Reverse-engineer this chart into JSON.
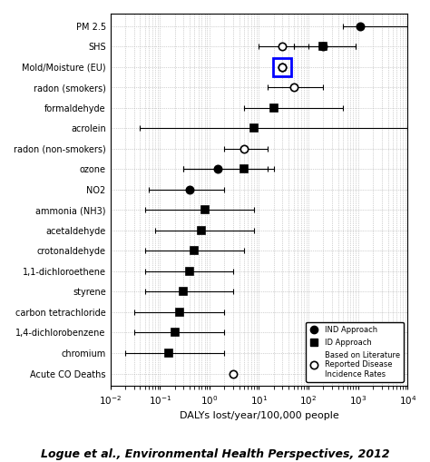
{
  "xlabel": "DALYs lost/year/100,000 people",
  "citation": "Logue et al., Environmental Health Perspectives, 2012",
  "categories": [
    "PM 2.5",
    "SHS",
    "Mold/Moisture (EU)",
    "radon (smokers)",
    "formaldehyde",
    "acrolein",
    "radon (non-smokers)",
    "ozone",
    "NO2",
    "ammonia (NH3)",
    "acetaldehyde",
    "crotonaldehyde",
    "1,1-dichloroethene",
    "styrene",
    "carbon tetrachloride",
    "1,4-dichlorobenzene",
    "chromium",
    "Acute CO Deaths"
  ],
  "ind_data": {
    "PM 2.5": [
      1100,
      500,
      10000
    ],
    "SHS": [
      200,
      50,
      900
    ],
    "ozone": [
      1.5,
      0.3,
      15
    ],
    "NO2": [
      0.4,
      0.06,
      2.0
    ]
  },
  "id_data": {
    "SHS": [
      200,
      50,
      900
    ],
    "formaldehyde": [
      20,
      5,
      500
    ],
    "acrolein": [
      8,
      0.04,
      10000
    ],
    "ozone": [
      5,
      0.3,
      20
    ],
    "ammonia (NH3)": [
      0.8,
      0.05,
      8
    ],
    "acetaldehyde": [
      0.7,
      0.08,
      8
    ],
    "crotonaldehyde": [
      0.5,
      0.05,
      5
    ],
    "1,1-dichloroethene": [
      0.4,
      0.05,
      3
    ],
    "styrene": [
      0.3,
      0.05,
      3
    ],
    "carbon tetrachloride": [
      0.25,
      0.03,
      2
    ],
    "1,4-dichlorobenzene": [
      0.2,
      0.03,
      2
    ],
    "chromium": [
      0.15,
      0.02,
      2
    ]
  },
  "lit_data": {
    "SHS": [
      30,
      10,
      100
    ],
    "Mold/Moisture (EU)": [
      30,
      null,
      null
    ],
    "radon (smokers)": [
      50,
      15,
      200
    ],
    "radon (non-smokers)": [
      5,
      2,
      15
    ],
    "Acute CO Deaths": [
      3,
      null,
      null
    ]
  },
  "mold_is_special": true,
  "fig_width": 4.74,
  "fig_height": 5.09,
  "dpi": 100,
  "xlim": [
    0.01,
    10000
  ],
  "label_fontsize": 7.0,
  "tick_fontsize": 7.5,
  "xlabel_fontsize": 8.0,
  "citation_fontsize": 9.0,
  "marker_size_circle": 6,
  "marker_size_square": 6,
  "capsize": 2,
  "elinewidth": 0.8,
  "capthick": 0.8,
  "grid_color": "#aaaaaa",
  "grid_linestyle": ":",
  "grid_linewidth": 0.5
}
